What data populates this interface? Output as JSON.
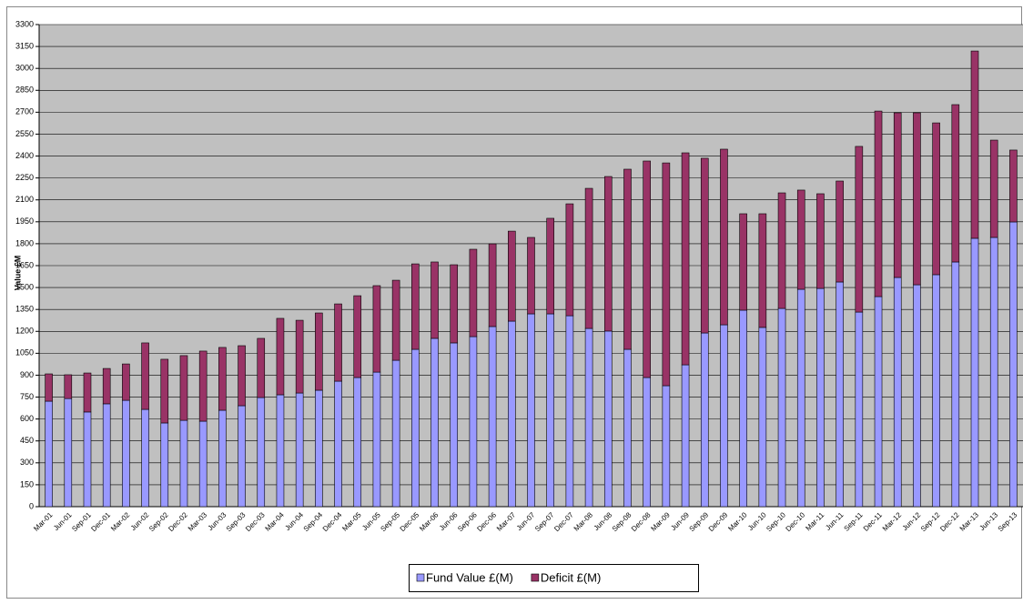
{
  "chart_data": {
    "type": "stacked_bar",
    "y_label": "Value £M",
    "categories": [
      "Mar-01",
      "Jun-01",
      "Sep-01",
      "Dec-01",
      "Mar-02",
      "Jun-02",
      "Sep-02",
      "Dec-02",
      "Mar-03",
      "Jun-03",
      "Sep-03",
      "Dec-03",
      "Mar-04",
      "Jun-04",
      "Sep-04",
      "Dec-04",
      "Mar-05",
      "Jun-05",
      "Sep-05",
      "Dec-05",
      "Mar-06",
      "Jun-06",
      "Sep-06",
      "Dec-06",
      "Mar-07",
      "Jun-07",
      "Sep-07",
      "Dec-07",
      "Mar-08",
      "Jun-08",
      "Sep-08",
      "Dec-08",
      "Mar-09",
      "Jun-09",
      "Sep-09",
      "Dec-09",
      "Mar-10",
      "Jun-10",
      "Sep-10",
      "Dec-10",
      "Mar-11",
      "Jun-11",
      "Sep-11",
      "Dec-11",
      "Mar-12",
      "Jun-12",
      "Sep-12",
      "Dec-12",
      "Mar-13",
      "Jun-13",
      "Sep-13"
    ],
    "series": [
      {
        "name": "Fund Value £(M)",
        "color": "#9999ff",
        "values": [
          722,
          740,
          648,
          704,
          728,
          666,
          573,
          591,
          585,
          660,
          691,
          747,
          766,
          778,
          797,
          859,
          884,
          921,
          1002,
          1077,
          1152,
          1121,
          1164,
          1233,
          1270,
          1320,
          1320,
          1307,
          1220,
          1202,
          1077,
          884,
          828,
          971,
          1189,
          1245,
          1345,
          1227,
          1357,
          1488,
          1494,
          1538,
          1332,
          1438,
          1569,
          1519,
          1588,
          1675,
          1837,
          1843,
          1949
        ]
      },
      {
        "name": "Deficit £(M)",
        "color": "#993366",
        "values": [
          187,
          163,
          267,
          242,
          249,
          455,
          436,
          443,
          480,
          430,
          411,
          405,
          523,
          498,
          529,
          529,
          560,
          592,
          548,
          585,
          523,
          535,
          598,
          566,
          616,
          523,
          654,
          766,
          959,
          1058,
          1233,
          1482,
          1525,
          1451,
          1196,
          1202,
          660,
          778,
          791,
          679,
          648,
          691,
          1134,
          1270,
          1127,
          1177,
          1039,
          1077,
          1282,
          666,
          492
        ]
      }
    ],
    "ylim": [
      0,
      3300
    ],
    "yticks": [
      0,
      150,
      300,
      450,
      600,
      750,
      900,
      1050,
      1200,
      1350,
      1500,
      1650,
      1800,
      1950,
      2100,
      2250,
      2400,
      2550,
      2700,
      2850,
      3000,
      3150,
      3300
    ],
    "grid": true,
    "legend": "bottom"
  }
}
